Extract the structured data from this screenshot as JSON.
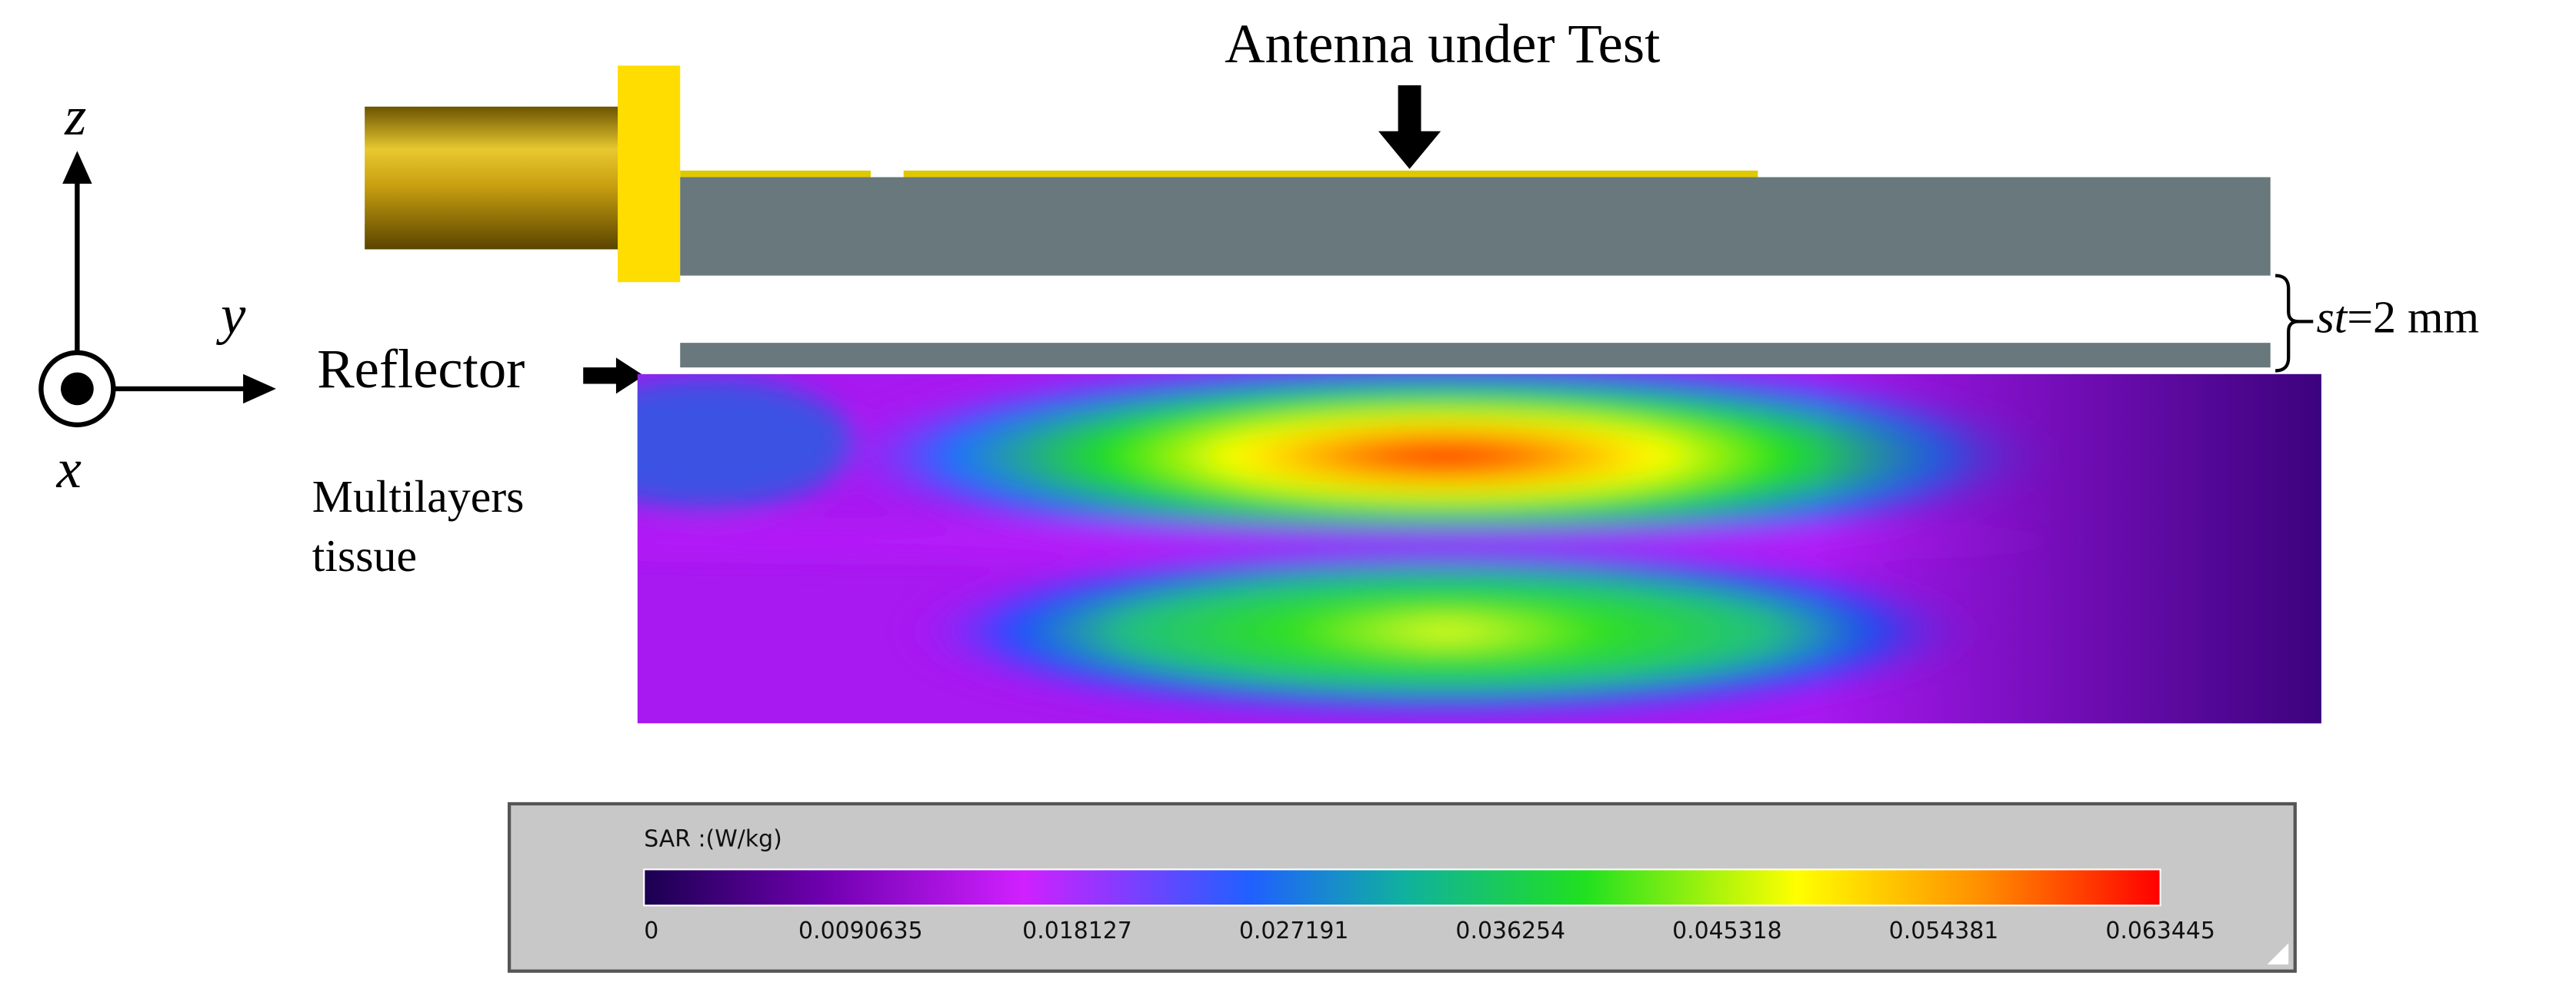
{
  "title": "Antenna under Test",
  "axes": {
    "z": "z",
    "y": "y",
    "x": "x"
  },
  "labels": {
    "reflector": "Reflector",
    "tissue": [
      "Multilayers",
      "tissue"
    ],
    "spacing": {
      "symbol": "st",
      "text": "=2 mm"
    }
  },
  "colorbar": {
    "title": "SAR :(W/kg)",
    "ticks": [
      0,
      0.0090635,
      0.018127,
      0.027191,
      0.036254,
      0.045318,
      0.054381,
      0.063445
    ]
  }
}
